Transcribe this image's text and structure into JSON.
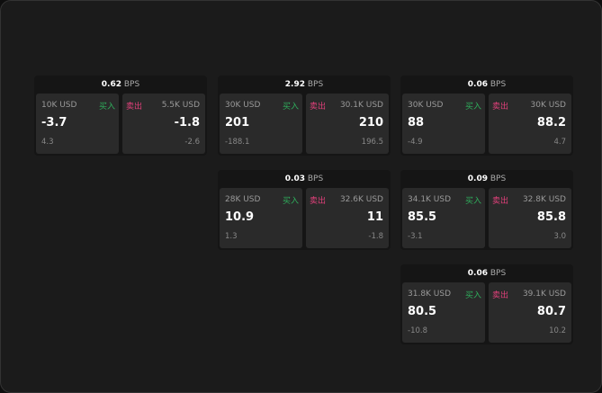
{
  "labels": {
    "bps": "BPS",
    "buy": "买入",
    "sell": "卖出"
  },
  "colors": {
    "buy": "#2fae5c",
    "sell": "#e0407a"
  },
  "cards": [
    {
      "bps": "0.62",
      "buy": {
        "qty": "10K USD",
        "price": "-3.7",
        "change": "4.3"
      },
      "sell": {
        "qty": "5.5K USD",
        "price": "-1.8",
        "change": "-2.6"
      }
    },
    {
      "bps": "2.92",
      "buy": {
        "qty": "30K USD",
        "price": "201",
        "change": "-188.1"
      },
      "sell": {
        "qty": "30.1K USD",
        "price": "210",
        "change": "196.5"
      }
    },
    {
      "bps": "0.06",
      "buy": {
        "qty": "30K USD",
        "price": "88",
        "change": "-4.9"
      },
      "sell": {
        "qty": "30K USD",
        "price": "88.2",
        "change": "4.7"
      }
    },
    {
      "bps": "0.03",
      "buy": {
        "qty": "28K USD",
        "price": "10.9",
        "change": "1.3"
      },
      "sell": {
        "qty": "32.6K USD",
        "price": "11",
        "change": "-1.8"
      }
    },
    {
      "bps": "0.09",
      "buy": {
        "qty": "34.1K USD",
        "price": "85.5",
        "change": "-3.1"
      },
      "sell": {
        "qty": "32.8K USD",
        "price": "85.8",
        "change": "3.0"
      }
    },
    {
      "bps": "0.06",
      "buy": {
        "qty": "31.8K USD",
        "price": "80.5",
        "change": "-10.8"
      },
      "sell": {
        "qty": "39.1K USD",
        "price": "80.7",
        "change": "10.2"
      }
    }
  ]
}
